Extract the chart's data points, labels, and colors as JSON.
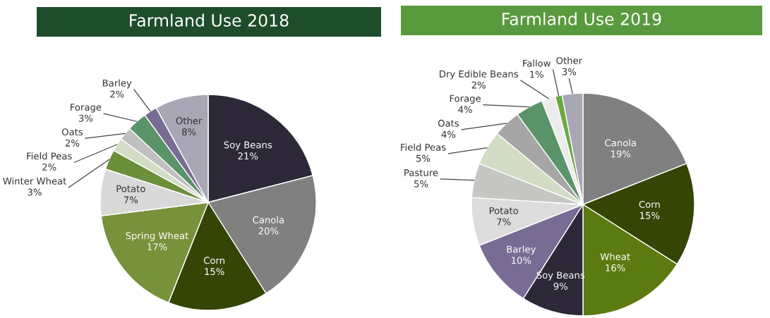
{
  "chart_data": [
    {
      "type": "pie",
      "title": "Farmland Use 2018",
      "data_labels": true,
      "categories": [
        "Soy Beans",
        "Canola",
        "Corn",
        "Spring Wheat",
        "Potato",
        "Winter Wheat",
        "Field Peas",
        "Oats",
        "Forage",
        "Barley",
        "Other"
      ],
      "values": [
        21,
        20,
        15,
        17,
        7,
        3,
        2,
        2,
        3,
        2,
        8
      ],
      "value_labels": [
        "21%",
        "20%",
        "15%",
        "17%",
        "7%",
        "3%",
        "2%",
        "2%",
        "3%",
        "2%",
        "8%"
      ],
      "colors": [
        "#2d2838",
        "#808080",
        "#344505",
        "#78923b",
        "#d9d9d9",
        "#6b8f3a",
        "#d3dcc4",
        "#c0c0c0",
        "#5a9468",
        "#786c94",
        "#a9a6b6"
      ]
    },
    {
      "type": "pie",
      "title": "Farmland Use 2019",
      "data_labels": true,
      "categories": [
        "Canola",
        "Corn",
        "Wheat",
        "Soy Beans",
        "Barley",
        "Potato",
        "Pasture",
        "Field Peas",
        "Oats",
        "Forage",
        "Dry Edible Beans",
        "Fallow",
        "Other"
      ],
      "values": [
        19,
        15,
        16,
        9,
        10,
        7,
        5,
        5,
        4,
        4,
        2,
        1,
        3
      ],
      "value_labels": [
        "19%",
        "15%",
        "16%",
        "9%",
        "10%",
        "7%",
        "5%",
        "5%",
        "4%",
        "4%",
        "2%",
        "1%",
        "3%"
      ],
      "colors": [
        "#808080",
        "#344505",
        "#5b7a10",
        "#2d2838",
        "#786c94",
        "#dcdcdc",
        "#c6c6c2",
        "#d3dcc4",
        "#a6a6a6",
        "#5a9468",
        "#ececec",
        "#6aaa40",
        "#a9a6b6"
      ]
    }
  ]
}
